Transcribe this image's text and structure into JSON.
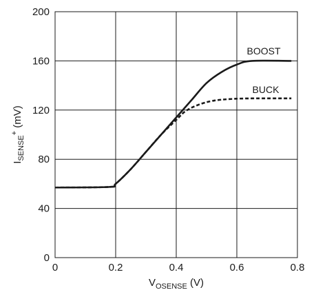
{
  "chart_data": {
    "type": "line",
    "xlabel": {
      "main": "V",
      "sub": "OSENSE",
      "unit": " (V)"
    },
    "ylabel": {
      "main": "I",
      "sub": "SENSE",
      "sup": "+",
      "unit": " (mV)"
    },
    "xlim": [
      0,
      0.8
    ],
    "ylim": [
      0,
      200
    ],
    "x_ticks": [
      0,
      0.2,
      0.4,
      0.6,
      0.8
    ],
    "x_tick_labels": [
      "0",
      "0.2",
      "0.4",
      "0.6",
      "0.8"
    ],
    "y_ticks": [
      0,
      40,
      80,
      120,
      160,
      200
    ],
    "y_tick_labels": [
      "0",
      "40",
      "80",
      "120",
      "160",
      "200"
    ],
    "grid": true,
    "series": [
      {
        "name": "BOOST",
        "style": "solid",
        "color": "#1a1a1a",
        "points": [
          [
            0,
            57
          ],
          [
            0.18,
            57.5
          ],
          [
            0.2,
            60
          ],
          [
            0.25,
            72
          ],
          [
            0.3,
            86
          ],
          [
            0.35,
            100
          ],
          [
            0.4,
            114
          ],
          [
            0.45,
            128
          ],
          [
            0.5,
            142
          ],
          [
            0.55,
            151
          ],
          [
            0.6,
            157
          ],
          [
            0.65,
            160
          ],
          [
            0.78,
            160
          ]
        ]
      },
      {
        "name": "BUCK",
        "style": "dashed",
        "color": "#1a1a1a",
        "points": [
          [
            0,
            57
          ],
          [
            0.18,
            57.5
          ],
          [
            0.2,
            60
          ],
          [
            0.25,
            72
          ],
          [
            0.3,
            86
          ],
          [
            0.35,
            100
          ],
          [
            0.4,
            112
          ],
          [
            0.43,
            119
          ],
          [
            0.47,
            124
          ],
          [
            0.52,
            127.5
          ],
          [
            0.58,
            129
          ],
          [
            0.65,
            129.5
          ],
          [
            0.78,
            129.5
          ]
        ]
      }
    ]
  }
}
